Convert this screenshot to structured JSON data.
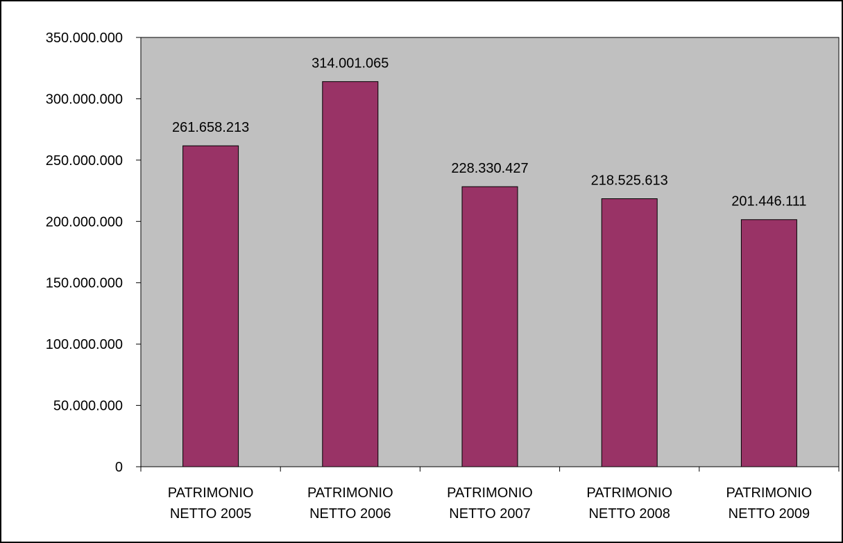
{
  "chart_data": {
    "type": "bar",
    "title": "",
    "xlabel": "",
    "ylabel": "",
    "categories": [
      [
        "PATRIMONIO",
        "NETTO 2005"
      ],
      [
        "PATRIMONIO",
        "NETTO 2006"
      ],
      [
        "PATRIMONIO",
        "NETTO 2007"
      ],
      [
        "PATRIMONIO",
        "NETTO 2008"
      ],
      [
        "PATRIMONIO",
        "NETTO 2009"
      ]
    ],
    "values": [
      261658213,
      314001065,
      228330427,
      218525613,
      201446111
    ],
    "value_labels": [
      "261.658.213",
      "314.001.065",
      "228.330.427",
      "218.525.613",
      "201.446.111"
    ],
    "ylim": [
      0,
      350000000
    ],
    "y_ticks": [
      0,
      50000000,
      100000000,
      150000000,
      200000000,
      250000000,
      300000000,
      350000000
    ],
    "y_tick_labels": [
      "0",
      "50.000.000",
      "100.000.000",
      "150.000.000",
      "200.000.000",
      "250.000.000",
      "300.000.000",
      "350.000.000"
    ],
    "grid": false,
    "legend": "none",
    "colors": {
      "bar": "#993366",
      "plot_background": "#c0c0c0",
      "axis": "#000000"
    }
  }
}
